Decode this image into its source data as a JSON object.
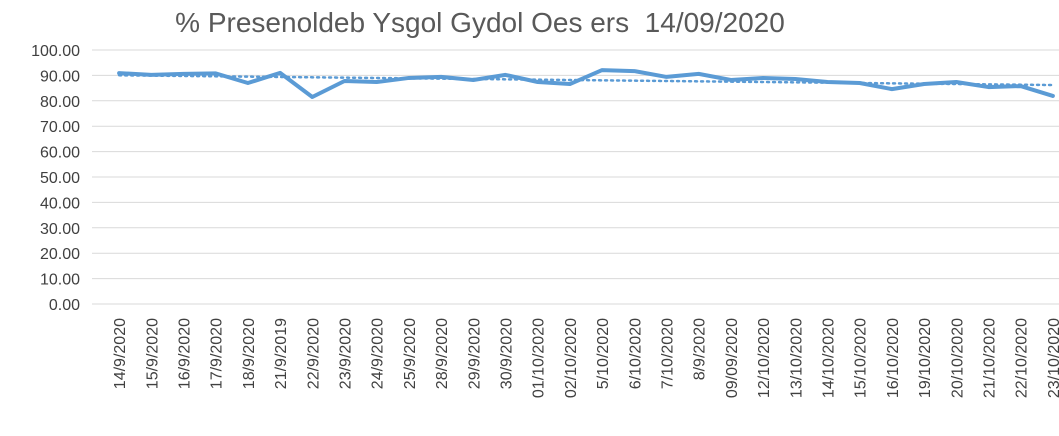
{
  "chart_data": {
    "type": "line",
    "title": "% Presenoldeb Ysgol Gydol Oes ers  14/09/2020",
    "categories": [
      "14/9/2020",
      "15/9/2020",
      "16/9/2020",
      "17/9/2020",
      "18/9/2020",
      "21/9/2019",
      "22/9/2020",
      "23/9/2020",
      "24/9/2020",
      "25/9/2020",
      "28/9/2020",
      "29/9/2020",
      "30/9/2020",
      "01/10/2020",
      "02/10/2020",
      "5/10/2020",
      "6/10/2020",
      "7/10/2020",
      "8/9/2020",
      "09/09/2020",
      "12/10/2020",
      "13/10/2020",
      "14/10/2020",
      "15/10/2020",
      "16/10/2020",
      "19/10/2020",
      "20/10/2020",
      "21/10/2020",
      "22/10/2020",
      "23/10/2020"
    ],
    "values": [
      90.9,
      90.2,
      90.6,
      90.8,
      87.0,
      91.0,
      81.5,
      87.8,
      87.4,
      89.0,
      89.4,
      88.2,
      90.2,
      87.4,
      86.6,
      92.1,
      91.7,
      89.4,
      90.6,
      88.2,
      89.0,
      88.6,
      87.4,
      87.0,
      84.6,
      86.6,
      87.4,
      85.4,
      85.8,
      81.9
    ],
    "color": "#5b9bd5",
    "trendline": "linear",
    "ylim": [
      0,
      100
    ],
    "yticks": [
      {
        "value": 0,
        "label": "0.00"
      },
      {
        "value": 10,
        "label": "10.00"
      },
      {
        "value": 20,
        "label": "20.00"
      },
      {
        "value": 30,
        "label": "30.00"
      },
      {
        "value": 40,
        "label": "40.00"
      },
      {
        "value": 50,
        "label": "50.00"
      },
      {
        "value": 60,
        "label": "60.00"
      },
      {
        "value": 70,
        "label": "70.00"
      },
      {
        "value": 80,
        "label": "80.00"
      },
      {
        "value": 90,
        "label": "90.00"
      },
      {
        "value": 100,
        "label": "100.00"
      }
    ],
    "grid": true
  }
}
